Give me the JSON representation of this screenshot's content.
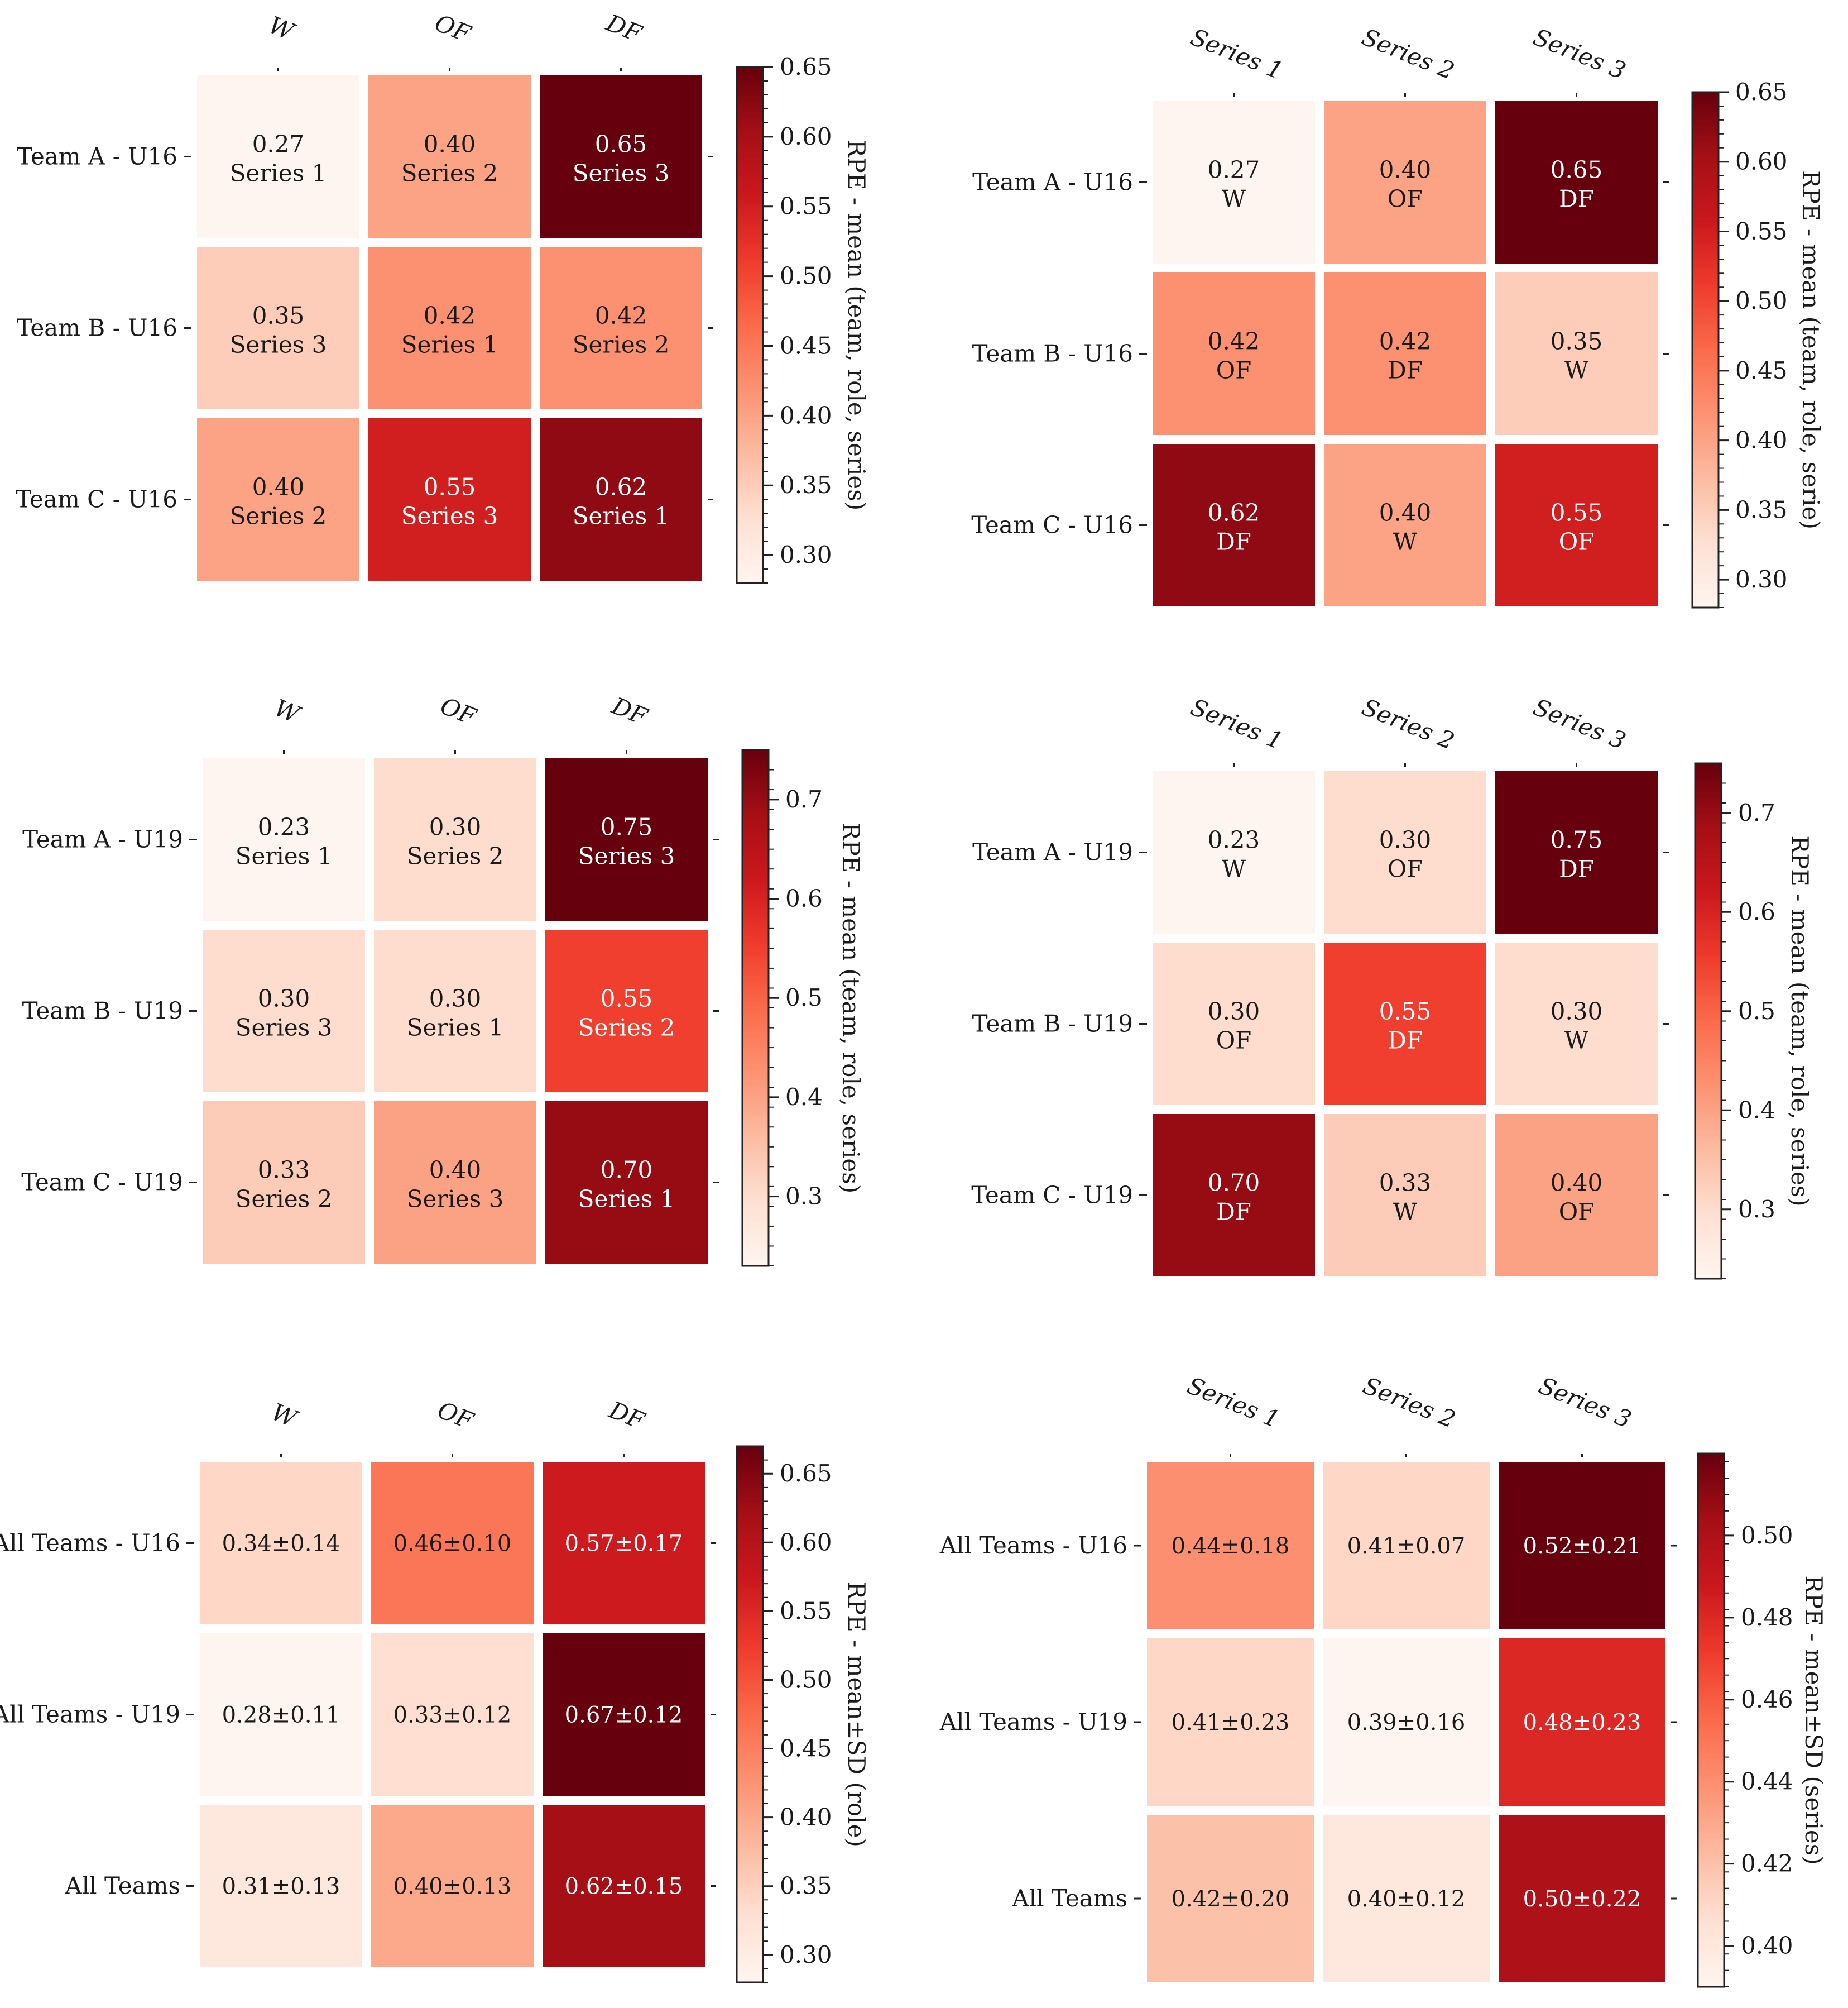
{
  "chart_data": [
    {
      "type": "heatmap",
      "id": "u16-by-role",
      "columns": [
        "W",
        "OF",
        "DF"
      ],
      "rows": [
        "Team A - U16",
        "Team B - U16",
        "Team C - U16"
      ],
      "values": [
        [
          0.27,
          0.4,
          0.65
        ],
        [
          0.35,
          0.42,
          0.42
        ],
        [
          0.4,
          0.55,
          0.62
        ]
      ],
      "value_labels": [
        [
          "0.27",
          "0.40",
          "0.65"
        ],
        [
          "0.35",
          "0.42",
          "0.42"
        ],
        [
          "0.40",
          "0.55",
          "0.62"
        ]
      ],
      "sub_labels": [
        [
          "Series 1",
          "Series 2",
          "Series 3"
        ],
        [
          "Series 3",
          "Series 1",
          "Series 2"
        ],
        [
          "Series 2",
          "Series 3",
          "Series 1"
        ]
      ],
      "colorbar": {
        "label": "RPE - mean (team, role, series)",
        "range": [
          0.28,
          0.65
        ],
        "ticks": [
          0.3,
          0.35,
          0.4,
          0.45,
          0.5,
          0.55,
          0.6,
          0.65
        ],
        "tick_labels": [
          "0.30",
          "0.35",
          "0.40",
          "0.45",
          "0.50",
          "0.55",
          "0.60",
          "0.65"
        ]
      }
    },
    {
      "type": "heatmap",
      "id": "u16-by-series",
      "columns": [
        "Series 1",
        "Series 2",
        "Series 3"
      ],
      "rows": [
        "Team A - U16",
        "Team B - U16",
        "Team C - U16"
      ],
      "values": [
        [
          0.27,
          0.4,
          0.65
        ],
        [
          0.42,
          0.42,
          0.35
        ],
        [
          0.62,
          0.4,
          0.55
        ]
      ],
      "value_labels": [
        [
          "0.27",
          "0.40",
          "0.65"
        ],
        [
          "0.42",
          "0.42",
          "0.35"
        ],
        [
          "0.62",
          "0.40",
          "0.55"
        ]
      ],
      "sub_labels": [
        [
          "W",
          "OF",
          "DF"
        ],
        [
          "OF",
          "DF",
          "W"
        ],
        [
          "DF",
          "W",
          "OF"
        ]
      ],
      "colorbar": {
        "label": "RPE - mean (team, role, serie)",
        "range": [
          0.28,
          0.65
        ],
        "ticks": [
          0.3,
          0.35,
          0.4,
          0.45,
          0.5,
          0.55,
          0.6,
          0.65
        ],
        "tick_labels": [
          "0.30",
          "0.35",
          "0.40",
          "0.45",
          "0.50",
          "0.55",
          "0.60",
          "0.65"
        ]
      }
    },
    {
      "type": "heatmap",
      "id": "u19-by-role",
      "columns": [
        "W",
        "OF",
        "DF"
      ],
      "rows": [
        "Team A - U19",
        "Team B - U19",
        "Team C - U19"
      ],
      "values": [
        [
          0.23,
          0.3,
          0.75
        ],
        [
          0.3,
          0.3,
          0.55
        ],
        [
          0.33,
          0.4,
          0.7
        ]
      ],
      "value_labels": [
        [
          "0.23",
          "0.30",
          "0.75"
        ],
        [
          "0.30",
          "0.30",
          "0.55"
        ],
        [
          "0.33",
          "0.40",
          "0.70"
        ]
      ],
      "sub_labels": [
        [
          "Series 1",
          "Series 2",
          "Series 3"
        ],
        [
          "Series 3",
          "Series 1",
          "Series 2"
        ],
        [
          "Series 2",
          "Series 3",
          "Series 1"
        ]
      ],
      "colorbar": {
        "label": "RPE - mean (team, role, series)",
        "range": [
          0.23,
          0.75
        ],
        "ticks": [
          0.3,
          0.4,
          0.5,
          0.6,
          0.7
        ],
        "tick_labels": [
          "0.3",
          "0.4",
          "0.5",
          "0.6",
          "0.7"
        ]
      }
    },
    {
      "type": "heatmap",
      "id": "u19-by-series",
      "columns": [
        "Series 1",
        "Series 2",
        "Series 3"
      ],
      "rows": [
        "Team A - U19",
        "Team B - U19",
        "Team C - U19"
      ],
      "values": [
        [
          0.23,
          0.3,
          0.75
        ],
        [
          0.3,
          0.55,
          0.3
        ],
        [
          0.7,
          0.33,
          0.4
        ]
      ],
      "value_labels": [
        [
          "0.23",
          "0.30",
          "0.75"
        ],
        [
          "0.30",
          "0.55",
          "0.30"
        ],
        [
          "0.70",
          "0.33",
          "0.40"
        ]
      ],
      "sub_labels": [
        [
          "W",
          "OF",
          "DF"
        ],
        [
          "OF",
          "DF",
          "W"
        ],
        [
          "DF",
          "W",
          "OF"
        ]
      ],
      "colorbar": {
        "label": "RPE - mean (team, role, series)",
        "range": [
          0.23,
          0.75
        ],
        "ticks": [
          0.3,
          0.4,
          0.5,
          0.6,
          0.7
        ],
        "tick_labels": [
          "0.3",
          "0.4",
          "0.5",
          "0.6",
          "0.7"
        ]
      }
    },
    {
      "type": "heatmap",
      "id": "all-by-role",
      "columns": [
        "W",
        "OF",
        "DF"
      ],
      "rows": [
        "All Teams - U16",
        "All Teams - U19",
        "All Teams"
      ],
      "values": [
        [
          0.34,
          0.46,
          0.57
        ],
        [
          0.28,
          0.33,
          0.67
        ],
        [
          0.31,
          0.4,
          0.62
        ]
      ],
      "value_labels": [
        [
          "0.34±0.14",
          "0.46±0.10",
          "0.57±0.17"
        ],
        [
          "0.28±0.11",
          "0.33±0.12",
          "0.67±0.12"
        ],
        [
          "0.31±0.13",
          "0.40±0.13",
          "0.62±0.15"
        ]
      ],
      "colorbar": {
        "label": "RPE - mean±SD (role)",
        "range": [
          0.28,
          0.67
        ],
        "ticks": [
          0.3,
          0.35,
          0.4,
          0.45,
          0.5,
          0.55,
          0.6,
          0.65
        ],
        "tick_labels": [
          "0.30",
          "0.35",
          "0.40",
          "0.45",
          "0.50",
          "0.55",
          "0.60",
          "0.65"
        ]
      }
    },
    {
      "type": "heatmap",
      "id": "all-by-series",
      "columns": [
        "Series 1",
        "Series 2",
        "Series 3"
      ],
      "rows": [
        "All Teams - U16",
        "All Teams - U19",
        "All Teams"
      ],
      "values": [
        [
          0.44,
          0.41,
          0.52
        ],
        [
          0.41,
          0.39,
          0.48
        ],
        [
          0.42,
          0.4,
          0.5
        ]
      ],
      "value_labels": [
        [
          "0.44±0.18",
          "0.41±0.07",
          "0.52±0.21"
        ],
        [
          "0.41±0.23",
          "0.39±0.16",
          "0.48±0.23"
        ],
        [
          "0.42±0.20",
          "0.40±0.12",
          "0.50±0.22"
        ]
      ],
      "colorbar": {
        "label": "RPE - mean±SD (series)",
        "range": [
          0.39,
          0.52
        ],
        "ticks": [
          0.4,
          0.42,
          0.44,
          0.46,
          0.48,
          0.5
        ],
        "tick_labels": [
          "0.40",
          "0.42",
          "0.44",
          "0.46",
          "0.48",
          "0.50"
        ]
      }
    }
  ]
}
